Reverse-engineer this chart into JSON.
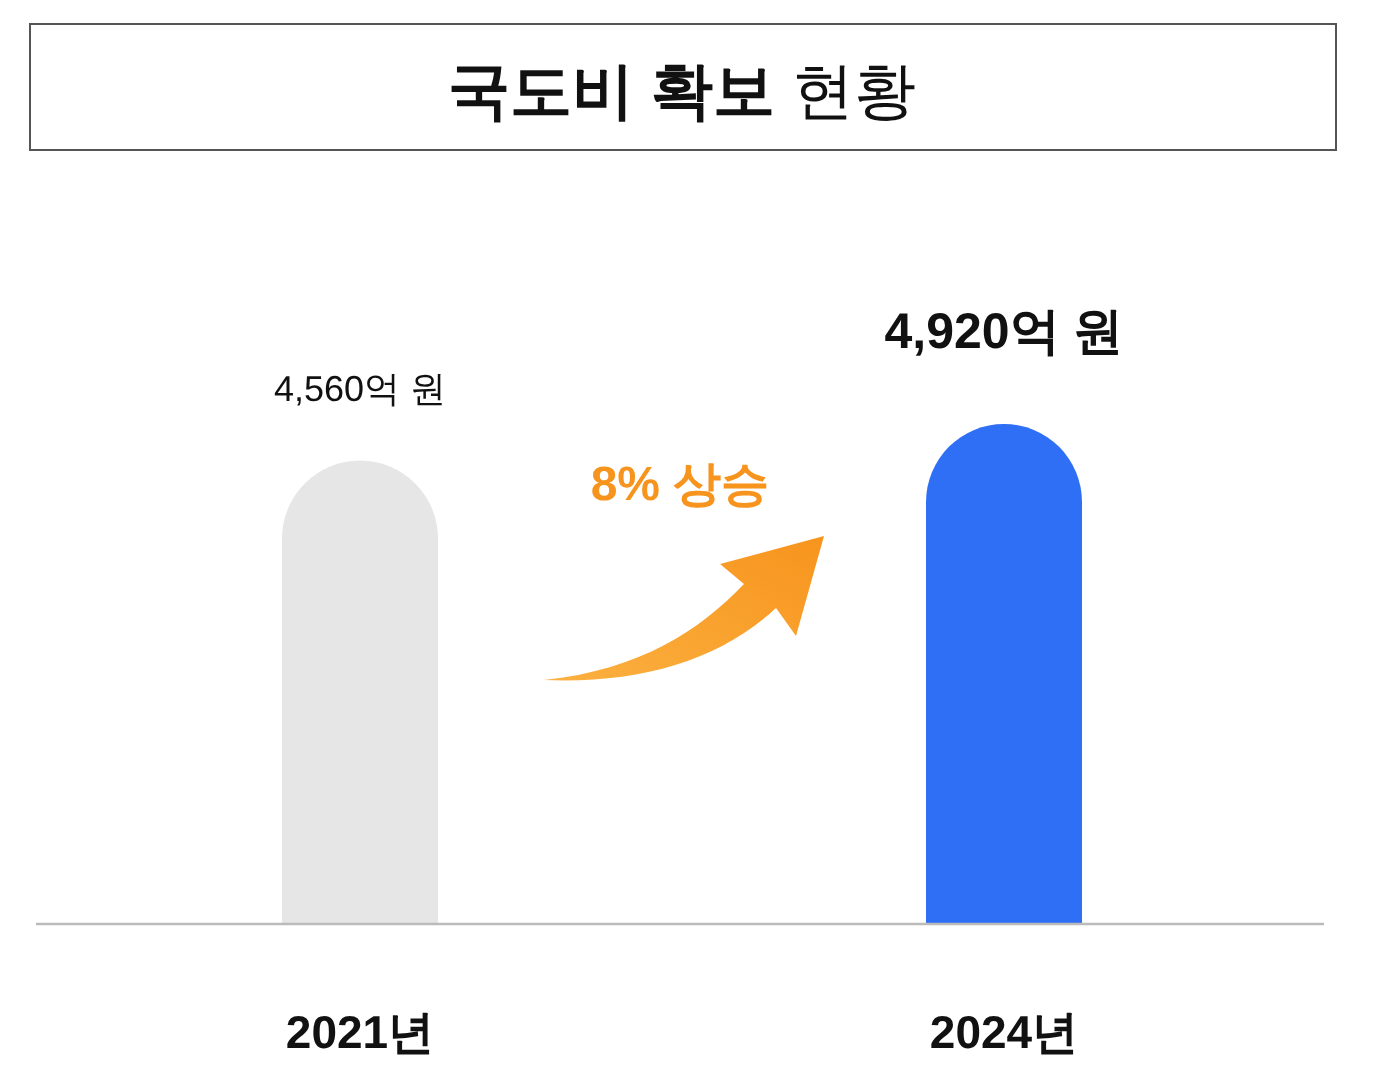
{
  "chart_data": {
    "type": "bar",
    "title": "국도비 확보 현황",
    "categories": [
      "2021년",
      "2024년"
    ],
    "values": [
      4560,
      4920
    ],
    "colors": [
      "#e6e6e6",
      "#2f6ff5"
    ],
    "value_labels": [
      "4,560억 원",
      "4,920억 원"
    ],
    "annotations": [
      "8% 상승"
    ],
    "grid": false,
    "legend": false
  }
}
